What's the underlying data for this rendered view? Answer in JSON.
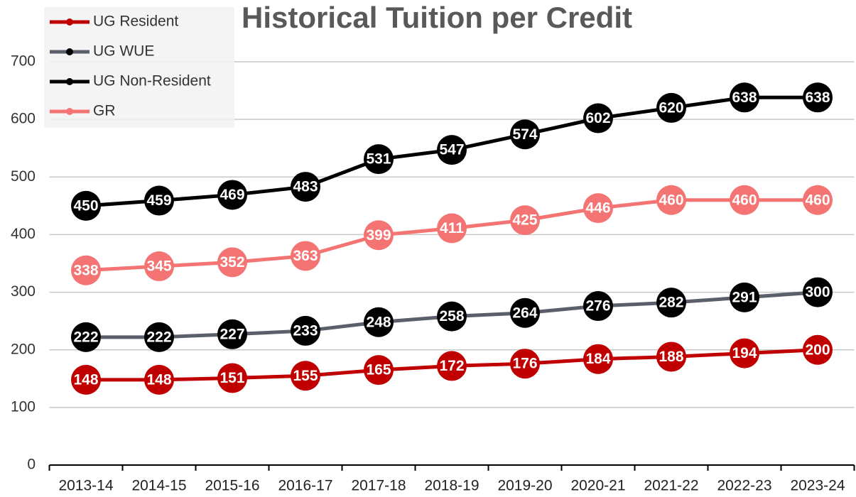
{
  "chart_data": {
    "type": "line",
    "title": "Historical Tuition per Credit",
    "categories": [
      "2013-14",
      "2014-15",
      "2015-16",
      "2016-17",
      "2017-18",
      "2018-19",
      "2019-20",
      "2020-21",
      "2021-22",
      "2022-23",
      "2023-24"
    ],
    "series": [
      {
        "name": "UG Resident",
        "color": "#c00000",
        "marker_color": "#c00000",
        "values": [
          148,
          148,
          151,
          155,
          165,
          172,
          176,
          184,
          188,
          194,
          200
        ]
      },
      {
        "name": "UG WUE",
        "color": "#5b5f6c",
        "marker_color": "#000000",
        "values": [
          222,
          222,
          227,
          233,
          248,
          258,
          264,
          276,
          282,
          291,
          300
        ]
      },
      {
        "name": "UG Non-Resident",
        "color": "#000000",
        "marker_color": "#000000",
        "values": [
          450,
          459,
          469,
          483,
          531,
          547,
          574,
          602,
          620,
          638,
          638
        ]
      },
      {
        "name": "GR",
        "color": "#f47474",
        "marker_color": "#f47474",
        "values": [
          338,
          345,
          352,
          363,
          399,
          411,
          425,
          446,
          460,
          460,
          460
        ]
      }
    ],
    "ylim": [
      0,
      700
    ],
    "yticks": [
      0,
      100,
      200,
      300,
      400,
      500,
      600,
      700
    ],
    "grid": true,
    "legend": "top-left"
  }
}
